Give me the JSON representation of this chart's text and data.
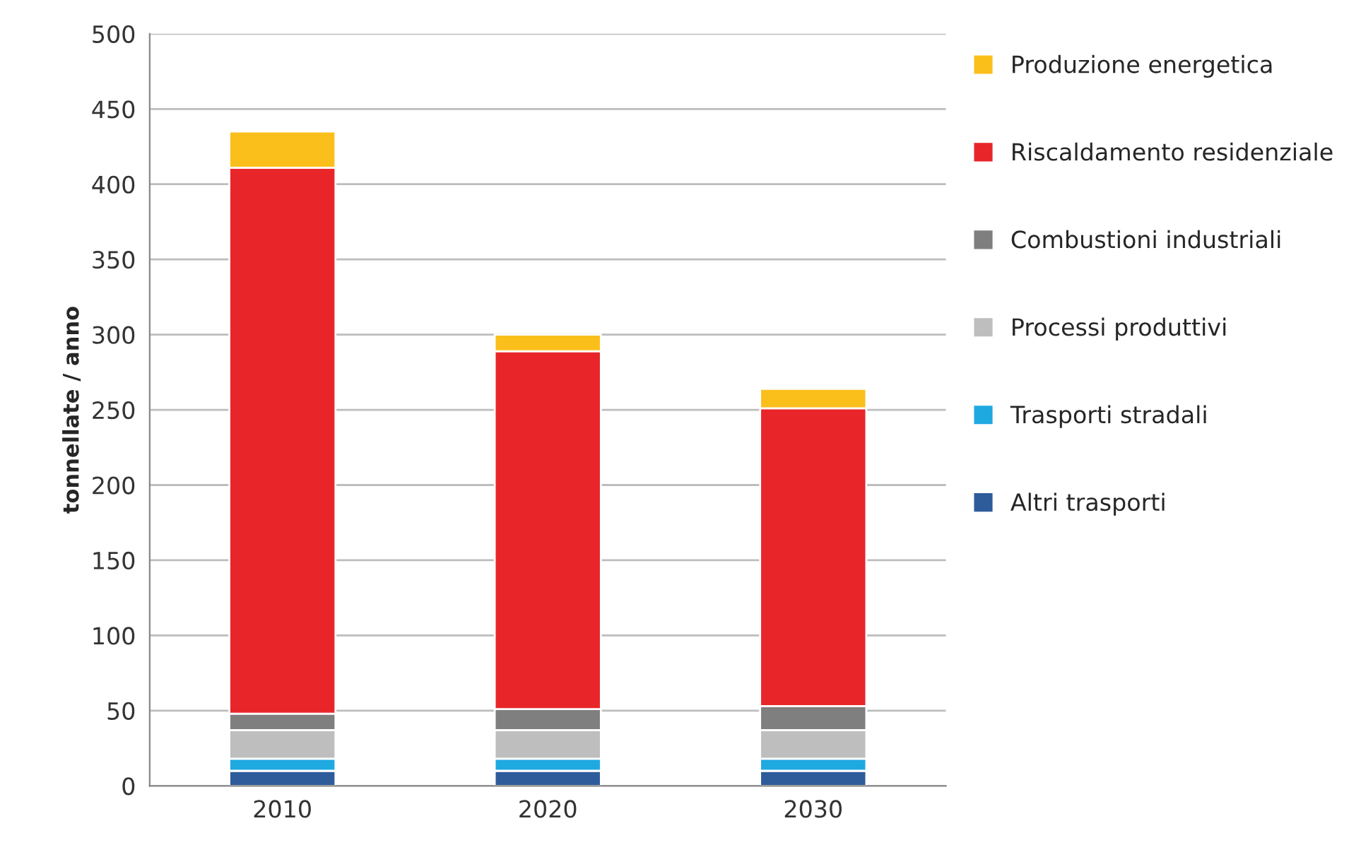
{
  "chart_data": {
    "type": "bar",
    "stacked": true,
    "ylabel": "tonnellate / anno",
    "categories": [
      "2010",
      "2020",
      "2030"
    ],
    "series": [
      {
        "name": "Altri trasporti",
        "color": "#2e5c9a",
        "values": [
          10,
          10,
          10
        ]
      },
      {
        "name": "Trasporti stradali",
        "color": "#1ea9e1",
        "values": [
          8,
          8,
          8
        ]
      },
      {
        "name": "Processi produttivi",
        "color": "#bebebe",
        "values": [
          19,
          19,
          19
        ]
      },
      {
        "name": "Combustioni industriali",
        "color": "#7f7f7f",
        "values": [
          11,
          14,
          16
        ]
      },
      {
        "name": "Riscaldamento residenziale",
        "color": "#e8262a",
        "values": [
          363,
          238,
          198
        ]
      },
      {
        "name": "Produzione energetica",
        "color": "#fbbf1c",
        "values": [
          24,
          11,
          13
        ]
      }
    ],
    "ylim": [
      0,
      500
    ],
    "yticks": [
      0,
      50,
      100,
      150,
      200,
      250,
      300,
      350,
      400,
      450,
      500
    ],
    "grid": "y",
    "legend": "right"
  }
}
